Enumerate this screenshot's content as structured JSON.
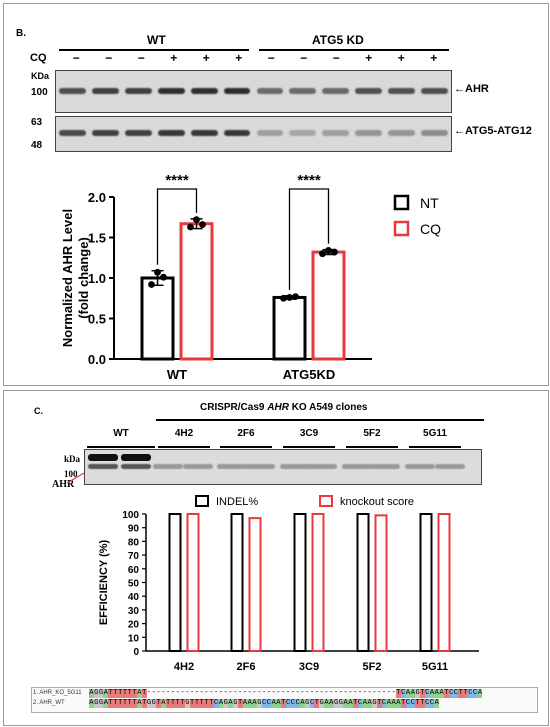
{
  "panel_b": {
    "label": "B.",
    "groups": [
      "WT",
      "ATG5 KD"
    ],
    "cq_label": "CQ",
    "cq_marks": [
      "−",
      "−",
      "−",
      "+",
      "+",
      "+",
      "−",
      "−",
      "−",
      "+",
      "+",
      "+"
    ],
    "kda_label": "KDa",
    "blot1_marker": "100",
    "blot1_target": "AHR",
    "blot2_markers": [
      "63",
      "48"
    ],
    "blot2_target": "ATG5-ATG12",
    "band_intensity_ahr": [
      0.72,
      0.8,
      0.8,
      0.9,
      0.9,
      0.92,
      0.55,
      0.55,
      0.55,
      0.7,
      0.7,
      0.72
    ],
    "band_intensity_atg": [
      0.75,
      0.8,
      0.8,
      0.85,
      0.85,
      0.85,
      0.25,
      0.2,
      0.25,
      0.3,
      0.3,
      0.35
    ]
  },
  "panel_c": {
    "label": "C.",
    "header": "CRISPR/Cas9 AHR KO A549 clones",
    "header_parts": [
      "CRISPR/Cas9 ",
      "AHR",
      " KO A549 clones"
    ],
    "lanes": [
      "WT",
      "4H2",
      "2F6",
      "3C9",
      "5F2",
      "5G11"
    ],
    "kda_label": "kDa",
    "marker": "100",
    "target": "AHR",
    "seq_labels": [
      "1. AHR_KO_5G11",
      "2. AHR_WT"
    ],
    "seq_ko": "AGGATTTTTTAT----------------------------------------------------TCAAGTCAAATCCTTCCA",
    "seq_wt": "AGGATTTTTTATGGTATTTTGTTTTTCAGAGTAAAGCCAATCCCAGCTGAAGGAATCAAGTCAAATCCTTCCA"
  },
  "chart_data": [
    {
      "type": "bar",
      "ylabel": "Normalized AHR Level (fold change)",
      "xlabel": "",
      "categories": [
        "WT",
        "ATG5KD"
      ],
      "ylim": [
        0,
        2.0
      ],
      "yticks": [
        "0.0",
        "0.5",
        "1.0",
        "1.5",
        "2.0"
      ],
      "series": [
        {
          "name": "NT",
          "color": "#000000",
          "values": [
            1.0,
            0.76
          ],
          "errors": [
            0.09,
            0.02
          ],
          "points": [
            [
              0.92,
              1.07,
              1.01
            ],
            [
              0.75,
              0.76,
              0.77
            ]
          ]
        },
        {
          "name": "CQ",
          "color": "#e8393c",
          "values": [
            1.67,
            1.32
          ],
          "errors": [
            0.06,
            0.03
          ],
          "points": [
            [
              1.63,
              1.72,
              1.66
            ],
            [
              1.3,
              1.34,
              1.32
            ]
          ]
        }
      ],
      "significance": [
        "****",
        "****"
      ],
      "legend_position": "right"
    },
    {
      "type": "bar",
      "ylabel": "EFFICIENCY (%)",
      "xlabel": "",
      "categories": [
        "4H2",
        "2F6",
        "3C9",
        "5F2",
        "5G11"
      ],
      "ylim": [
        0,
        100
      ],
      "yticks": [
        "0",
        "10",
        "20",
        "30",
        "40",
        "50",
        "60",
        "70",
        "80",
        "90",
        "100"
      ],
      "series": [
        {
          "name": "INDEL%",
          "color": "#000000",
          "values": [
            100,
            100,
            100,
            100,
            100
          ]
        },
        {
          "name": "knockout score",
          "color": "#e8393c",
          "values": [
            100,
            97,
            100,
            99,
            100
          ]
        }
      ],
      "legend_position": "top"
    }
  ]
}
